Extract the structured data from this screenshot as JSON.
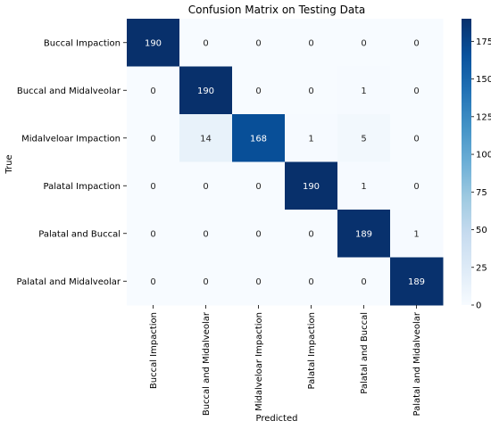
{
  "chart_data": {
    "type": "heatmap",
    "title": "Confusion Matrix on Testing Data",
    "xlabel": "Predicted",
    "ylabel": "True",
    "row_labels": [
      "Buccal Impaction",
      "Buccal and Midalveolar",
      "Midalveloar Impaction",
      "Palatal Impaction",
      "Palatal and Buccal",
      "Palatal and Midalveolar"
    ],
    "col_labels": [
      "Buccal Impaction",
      "Buccal and Midalveolar",
      "Midalveloar Impaction",
      "Palatal Impaction",
      "Palatal and Buccal",
      "Palatal and Midalveolar"
    ],
    "values": [
      [
        190,
        0,
        0,
        0,
        0,
        0
      ],
      [
        0,
        190,
        0,
        0,
        1,
        0
      ],
      [
        0,
        14,
        168,
        1,
        5,
        0
      ],
      [
        0,
        0,
        0,
        190,
        1,
        0
      ],
      [
        0,
        0,
        0,
        0,
        189,
        1
      ],
      [
        0,
        0,
        0,
        0,
        0,
        189
      ]
    ],
    "colorbar": {
      "min": 0,
      "max": 190,
      "ticks": [
        0,
        25,
        50,
        75,
        100,
        125,
        150,
        175
      ],
      "colormap": "Blues",
      "colors": [
        "#f7fbff",
        "#deebf7",
        "#c6dbef",
        "#9ecae1",
        "#6baed6",
        "#4292c6",
        "#2171b5",
        "#08519c",
        "#08306b"
      ]
    }
  }
}
